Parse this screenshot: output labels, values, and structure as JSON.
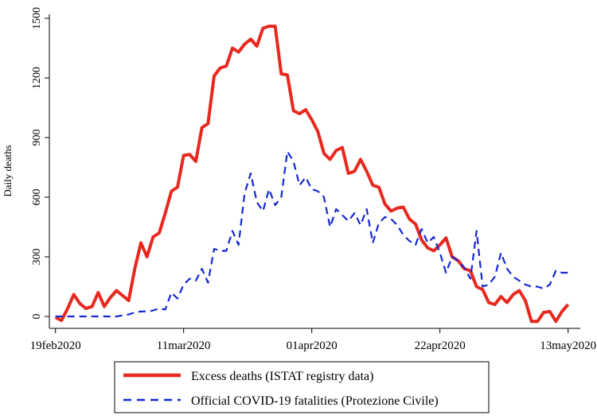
{
  "chart_data": {
    "type": "line",
    "ylabel": "Daily deaths",
    "xlabel": "",
    "title": "",
    "x_start": "2020-02-19",
    "ylim": [
      -60,
      1520
    ],
    "xlim": [
      "2020-02-18",
      "2020-05-15"
    ],
    "yticks": [
      0,
      300,
      600,
      900,
      1200,
      1500
    ],
    "xticks": [
      {
        "date": "2020-02-19",
        "label": "19feb2020"
      },
      {
        "date": "2020-03-11",
        "label": "11mar2020"
      },
      {
        "date": "2020-04-01",
        "label": "01apr2020"
      },
      {
        "date": "2020-04-22",
        "label": "22apr2020"
      },
      {
        "date": "2020-05-13",
        "label": "13may2020"
      }
    ],
    "grid": false,
    "legend_position": "bottom",
    "series": [
      {
        "name": "Excess deaths (ISTAT registry data)",
        "color": "#e8281e",
        "style": "solid",
        "values": [
          -5,
          -20,
          40,
          110,
          65,
          40,
          50,
          120,
          50,
          95,
          130,
          105,
          80,
          240,
          370,
          300,
          400,
          420,
          520,
          630,
          650,
          810,
          815,
          780,
          950,
          970,
          1210,
          1250,
          1260,
          1350,
          1330,
          1370,
          1395,
          1360,
          1450,
          1460,
          1460,
          1220,
          1215,
          1035,
          1020,
          1040,
          990,
          930,
          820,
          790,
          835,
          850,
          720,
          730,
          790,
          730,
          660,
          650,
          565,
          530,
          545,
          550,
          490,
          465,
          385,
          345,
          330,
          360,
          395,
          300,
          280,
          240,
          230,
          150,
          135,
          70,
          60,
          100,
          70,
          110,
          130,
          80,
          -25,
          -25,
          20,
          25,
          -25,
          25,
          60
        ]
      },
      {
        "name": "Official COVID-19 fatalities (Protezione Civile)",
        "color": "#1428d2",
        "style": "dashed",
        "values": [
          0,
          0,
          0,
          0,
          0,
          0,
          0,
          0,
          0,
          0,
          0,
          5,
          10,
          20,
          25,
          25,
          30,
          40,
          35,
          120,
          90,
          160,
          190,
          180,
          240,
          170,
          340,
          330,
          330,
          430,
          360,
          620,
          720,
          575,
          530,
          640,
          560,
          600,
          830,
          780,
          660,
          700,
          640,
          630,
          600,
          450,
          540,
          510,
          480,
          520,
          460,
          540,
          370,
          470,
          500,
          490,
          460,
          410,
          380,
          360,
          440,
          370,
          400,
          320,
          220,
          300,
          280,
          245,
          190,
          430,
          150,
          160,
          200,
          320,
          240,
          200,
          180,
          160,
          150,
          150,
          140,
          160,
          230,
          220,
          220
        ]
      }
    ]
  }
}
